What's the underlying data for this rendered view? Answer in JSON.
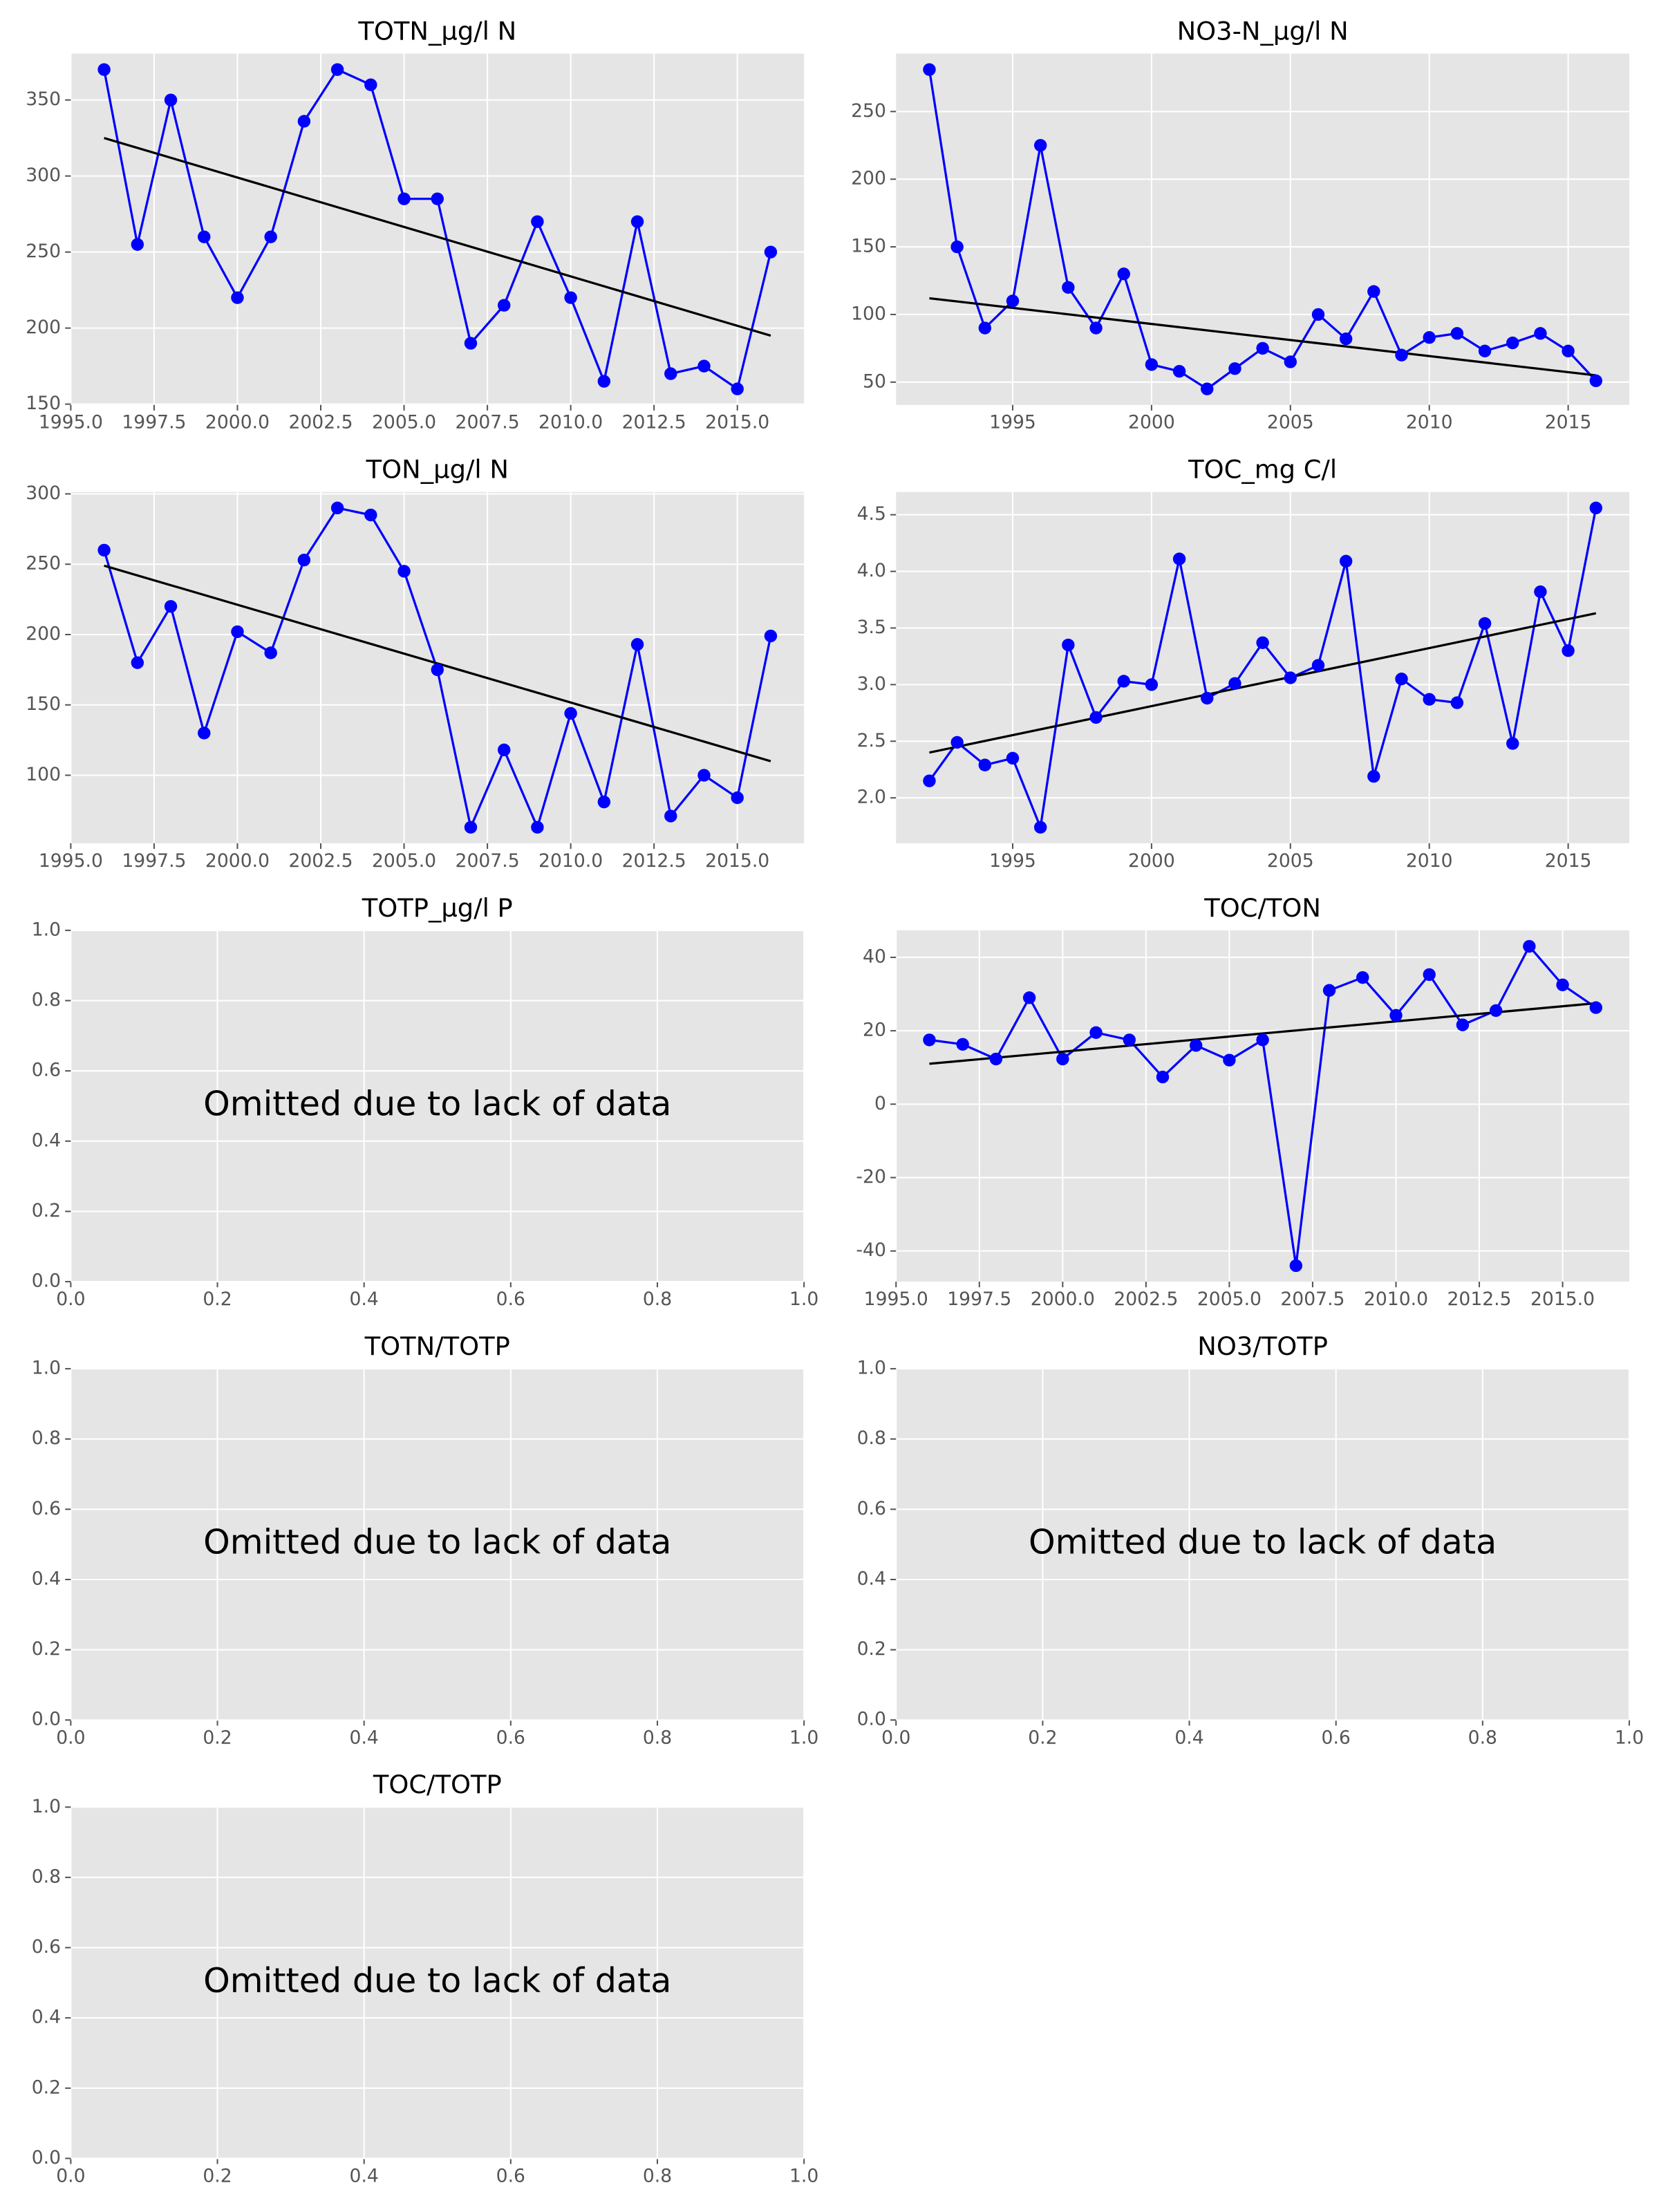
{
  "chart_data": [
    {
      "type": "line",
      "title": "TOTN_µg/l N",
      "color": "#0000ff",
      "grid": true,
      "x": [
        1996,
        1997,
        1998,
        1999,
        2000,
        2001,
        2002,
        2003,
        2004,
        2005,
        2006,
        2007,
        2008,
        2009,
        2010,
        2011,
        2012,
        2013,
        2014,
        2015,
        2016
      ],
      "values": [
        370,
        255,
        350,
        260,
        220,
        260,
        336,
        370,
        360,
        285,
        285,
        190,
        215,
        270,
        220,
        165,
        270,
        170,
        175,
        160,
        250
      ],
      "trend": {
        "x": [
          1996,
          2016
        ],
        "values": [
          325,
          195
        ],
        "color": "#000000"
      },
      "xlim": [
        1995,
        2017
      ],
      "ylim": [
        149.5,
        380.5
      ],
      "xticks": [
        {
          "value": 1995,
          "label": "1995.0"
        },
        1997.5,
        {
          "value": 2000,
          "label": "2000.0"
        },
        2002.5,
        {
          "value": 2005,
          "label": "2005.0"
        },
        2007.5,
        {
          "value": 2010,
          "label": "2010.0"
        },
        2012.5,
        {
          "value": 2015,
          "label": "2015.0"
        }
      ],
      "yticks": [
        150,
        200,
        250,
        300,
        350
      ]
    },
    {
      "type": "line",
      "title": "NO3-N_µg/l N",
      "color": "#0000ff",
      "grid": true,
      "x": [
        1992,
        1993,
        1994,
        1995,
        1996,
        1997,
        1998,
        1999,
        2000,
        2001,
        2002,
        2003,
        2004,
        2005,
        2006,
        2007,
        2008,
        2009,
        2010,
        2011,
        2012,
        2013,
        2014,
        2015,
        2016
      ],
      "values": [
        281,
        150,
        90,
        110,
        225,
        120,
        90,
        130,
        63,
        58,
        45,
        60,
        75,
        65,
        100,
        82,
        117,
        70,
        83,
        86,
        73,
        79,
        86,
        73,
        51
      ],
      "trend": {
        "x": [
          1992,
          2016
        ],
        "values": [
          112,
          55
        ],
        "color": "#000000"
      },
      "xlim": [
        1990.8,
        2017.2
      ],
      "ylim": [
        33.2,
        292.8
      ],
      "xticks": [
        1995,
        2000,
        2005,
        2010,
        2015
      ],
      "yticks": [
        50,
        100,
        150,
        200,
        250
      ]
    },
    {
      "type": "line",
      "title": "TON_µg/l N",
      "color": "#0000ff",
      "grid": true,
      "x": [
        1996,
        1997,
        1998,
        1999,
        2000,
        2001,
        2002,
        2003,
        2004,
        2005,
        2006,
        2007,
        2008,
        2009,
        2010,
        2011,
        2012,
        2013,
        2014,
        2015,
        2016
      ],
      "values": [
        260,
        180,
        220,
        130,
        202,
        187,
        253,
        290,
        285,
        245,
        175,
        63,
        118,
        63,
        144,
        81,
        193,
        71,
        100,
        84,
        199
      ],
      "trend": {
        "x": [
          1996,
          2016
        ],
        "values": [
          249,
          110
        ],
        "color": "#000000"
      },
      "xlim": [
        1995,
        2017
      ],
      "ylim": [
        51.65,
        301.35
      ],
      "xticks": [
        {
          "value": 1995,
          "label": "1995.0"
        },
        1997.5,
        {
          "value": 2000,
          "label": "2000.0"
        },
        2002.5,
        {
          "value": 2005,
          "label": "2005.0"
        },
        2007.5,
        {
          "value": 2010,
          "label": "2010.0"
        },
        2012.5,
        {
          "value": 2015,
          "label": "2015.0"
        }
      ],
      "yticks": [
        100,
        150,
        200,
        250,
        300
      ]
    },
    {
      "type": "line",
      "title": "TOC_mg C/l",
      "color": "#0000ff",
      "grid": true,
      "x": [
        1992,
        1993,
        1994,
        1995,
        1996,
        1997,
        1998,
        1999,
        2000,
        2001,
        2002,
        2003,
        2004,
        2005,
        2006,
        2007,
        2008,
        2009,
        2010,
        2011,
        2012,
        2013,
        2014,
        2015,
        2016
      ],
      "values": [
        2.15,
        2.49,
        2.29,
        2.35,
        1.74,
        3.35,
        2.71,
        3.03,
        3.0,
        4.11,
        2.88,
        3.01,
        3.37,
        3.06,
        3.17,
        4.09,
        2.19,
        3.05,
        2.87,
        2.84,
        3.54,
        2.48,
        3.82,
        3.3,
        4.56
      ],
      "trend": {
        "x": [
          1992,
          2016
        ],
        "values": [
          2.4,
          3.63
        ],
        "color": "#000000"
      },
      "xlim": [
        1990.8,
        2017.2
      ],
      "ylim": [
        1.599,
        4.701
      ],
      "xticks": [
        1995,
        2000,
        2005,
        2010,
        2015
      ],
      "yticks": [
        {
          "value": 2,
          "label": "2.0"
        },
        2.5,
        {
          "value": 3,
          "label": "3.0"
        },
        3.5,
        {
          "value": 4,
          "label": "4.0"
        },
        4.5
      ]
    },
    {
      "type": "empty",
      "title": "TOTP_µg/l P",
      "annotation": "Omitted due to lack of data",
      "grid": true,
      "xlim": [
        0,
        1
      ],
      "ylim": [
        0,
        1
      ],
      "xticks": [
        {
          "value": 0,
          "label": "0.0"
        },
        0.2,
        0.4,
        0.6,
        0.8,
        {
          "value": 1,
          "label": "1.0"
        }
      ],
      "yticks": [
        {
          "value": 0,
          "label": "0.0"
        },
        0.2,
        0.4,
        0.6,
        0.8,
        {
          "value": 1,
          "label": "1.0"
        }
      ]
    },
    {
      "type": "line",
      "title": "TOC/TON",
      "color": "#0000ff",
      "grid": true,
      "x": [
        1996,
        1997,
        1998,
        1999,
        2000,
        2001,
        2002,
        2003,
        2004,
        2005,
        2006,
        2007,
        2008,
        2009,
        2010,
        2011,
        2012,
        2013,
        2014,
        2015,
        2016
      ],
      "values": [
        17.5,
        16.3,
        12.3,
        29,
        12.3,
        19.5,
        17.5,
        7.4,
        16,
        12,
        17.5,
        -44,
        31,
        34.5,
        24.2,
        35.3,
        21.6,
        25.5,
        43,
        32.5,
        26.3
      ],
      "trend": {
        "x": [
          1996,
          2016
        ],
        "values": [
          11,
          27.5
        ],
        "color": "#000000"
      },
      "xlim": [
        1995,
        2017
      ],
      "ylim": [
        -48.35,
        47.35
      ],
      "xticks": [
        {
          "value": 1995,
          "label": "1995.0"
        },
        1997.5,
        {
          "value": 2000,
          "label": "2000.0"
        },
        2002.5,
        {
          "value": 2005,
          "label": "2005.0"
        },
        2007.5,
        {
          "value": 2010,
          "label": "2010.0"
        },
        2012.5,
        {
          "value": 2015,
          "label": "2015.0"
        }
      ],
      "yticks": [
        -40,
        -20,
        0,
        20,
        40
      ]
    },
    {
      "type": "empty",
      "title": "TOTN/TOTP",
      "annotation": "Omitted due to lack of data",
      "grid": true,
      "xlim": [
        0,
        1
      ],
      "ylim": [
        0,
        1
      ],
      "xticks": [
        {
          "value": 0,
          "label": "0.0"
        },
        0.2,
        0.4,
        0.6,
        0.8,
        {
          "value": 1,
          "label": "1.0"
        }
      ],
      "yticks": [
        {
          "value": 0,
          "label": "0.0"
        },
        0.2,
        0.4,
        0.6,
        0.8,
        {
          "value": 1,
          "label": "1.0"
        }
      ]
    },
    {
      "type": "empty",
      "title": "NO3/TOTP",
      "annotation": "Omitted due to lack of data",
      "grid": true,
      "xlim": [
        0,
        1
      ],
      "ylim": [
        0,
        1
      ],
      "xticks": [
        {
          "value": 0,
          "label": "0.0"
        },
        0.2,
        0.4,
        0.6,
        0.8,
        {
          "value": 1,
          "label": "1.0"
        }
      ],
      "yticks": [
        {
          "value": 0,
          "label": "0.0"
        },
        0.2,
        0.4,
        0.6,
        0.8,
        {
          "value": 1,
          "label": "1.0"
        }
      ]
    },
    {
      "type": "empty",
      "title": "TOC/TOTP",
      "annotation": "Omitted due to lack of data",
      "grid": true,
      "xlim": [
        0,
        1
      ],
      "ylim": [
        0,
        1
      ],
      "xticks": [
        {
          "value": 0,
          "label": "0.0"
        },
        0.2,
        0.4,
        0.6,
        0.8,
        {
          "value": 1,
          "label": "1.0"
        }
      ],
      "yticks": [
        {
          "value": 0,
          "label": "0.0"
        },
        0.2,
        0.4,
        0.6,
        0.8,
        {
          "value": 1,
          "label": "1.0"
        }
      ]
    }
  ]
}
